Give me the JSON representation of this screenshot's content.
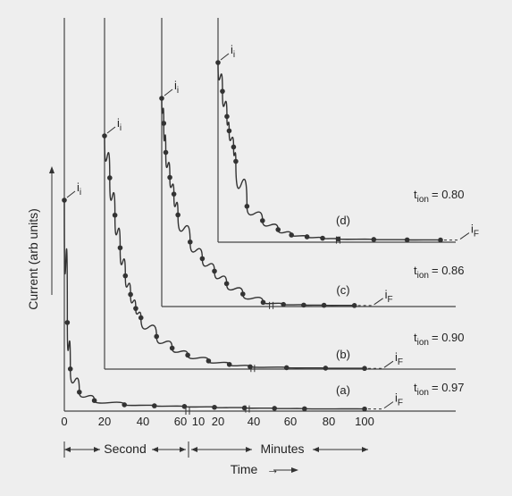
{
  "chart_data": {
    "type": "line",
    "ylabel": "Current (arb units)",
    "xlabel": "Time",
    "x_arrow": "→",
    "x_segments": [
      {
        "label": "Second",
        "ticks": [
          "0",
          "20",
          "40",
          "60"
        ]
      },
      {
        "label": "Minutes",
        "ticks": [
          "10",
          "20",
          "40",
          "60",
          "80",
          "100"
        ]
      }
    ],
    "initial_label": "i",
    "initial_sub": "i",
    "final_label": "i",
    "final_sub": "F",
    "series": [
      {
        "name": "(a)",
        "t_ion_label": "t",
        "t_ion_sub": "ion",
        "t_ion_value": "= 0.97",
        "color": "#333333",
        "points": [
          [
            0,
            100
          ],
          [
            1,
            42
          ],
          [
            2,
            20
          ],
          [
            5,
            9
          ],
          [
            10,
            5
          ],
          [
            20,
            3
          ],
          [
            30,
            2.5
          ],
          [
            40,
            2.2
          ],
          [
            50,
            1.8
          ],
          [
            60,
            1.5
          ],
          [
            70,
            1.3
          ],
          [
            80,
            1.1
          ],
          [
            100,
            1
          ]
        ],
        "break_x": 61
      },
      {
        "name": "(b)",
        "t_ion_label": "t",
        "t_ion_sub": "ion",
        "t_ion_value": "= 0.90",
        "color": "#333333",
        "points": [
          [
            0,
            100
          ],
          [
            2,
            82
          ],
          [
            4,
            66
          ],
          [
            6,
            52
          ],
          [
            8,
            40
          ],
          [
            10,
            32
          ],
          [
            12,
            26
          ],
          [
            14,
            22
          ],
          [
            20,
            14
          ],
          [
            26,
            9
          ],
          [
            32,
            6
          ],
          [
            40,
            3.5
          ],
          [
            48,
            2
          ],
          [
            56,
            1
          ],
          [
            70,
            0.6
          ],
          [
            85,
            0.4
          ],
          [
            100,
            0.3
          ]
        ],
        "break_x": 57
      },
      {
        "name": "(c)",
        "t_ion_label": "t",
        "t_ion_sub": "ion",
        "t_ion_value": "= 0.86",
        "color": "#333333",
        "points": [
          [
            0,
            100
          ],
          [
            1,
            88
          ],
          [
            2,
            74
          ],
          [
            4,
            62
          ],
          [
            6,
            54
          ],
          [
            8,
            44
          ],
          [
            14,
            31
          ],
          [
            20,
            23
          ],
          [
            26,
            17
          ],
          [
            32,
            11
          ],
          [
            40,
            6
          ],
          [
            50,
            2
          ],
          [
            60,
            1
          ],
          [
            70,
            0.7
          ],
          [
            80,
            0.6
          ],
          [
            95,
            0.5
          ]
        ],
        "break_x": 54
      },
      {
        "name": "(d)",
        "t_ion_label": "t",
        "t_ion_sub": "ion",
        "t_ion_value": "= 0.80",
        "color": "#333333",
        "points": [
          [
            0,
            100
          ],
          [
            2,
            84
          ],
          [
            4,
            70
          ],
          [
            5,
            62
          ],
          [
            7,
            53
          ],
          [
            8,
            45
          ],
          [
            13,
            20
          ],
          [
            20,
            12
          ],
          [
            27,
            7
          ],
          [
            33,
            4
          ],
          [
            40,
            3
          ],
          [
            47,
            2.2
          ],
          [
            54,
            1.8
          ],
          [
            70,
            1.5
          ],
          [
            85,
            1.3
          ],
          [
            100,
            1.2
          ]
        ],
        "break_x": 54
      }
    ]
  }
}
